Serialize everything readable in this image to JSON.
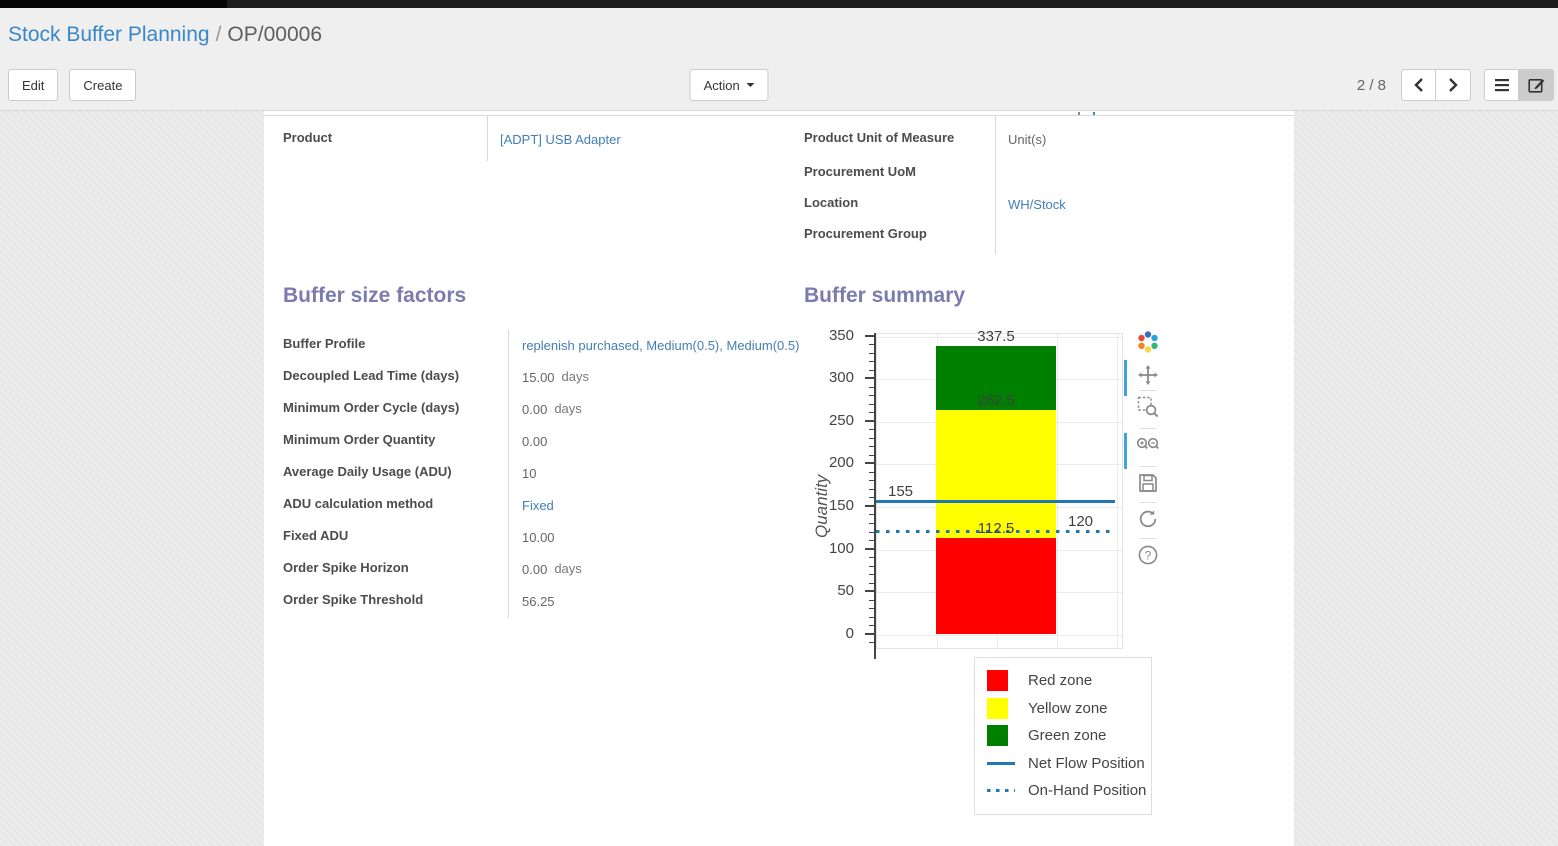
{
  "header": {
    "breadcrumb": {
      "parent": "Stock Buffer Planning",
      "separator": "/",
      "current": "OP/00006"
    },
    "buttons": {
      "edit": "Edit",
      "create": "Create",
      "action": "Action"
    },
    "pager": {
      "text": "2 / 8"
    }
  },
  "product_info": {
    "left": [
      {
        "label": "Product",
        "value": "[ADPT] USB Adapter",
        "link": true
      }
    ],
    "right": [
      {
        "label": "Product Unit of Measure",
        "value": "Unit(s)",
        "link": false
      },
      {
        "label": "Procurement UoM",
        "value": "",
        "link": false
      },
      {
        "label": "Location",
        "value": "WH/Stock",
        "link": true
      },
      {
        "label": "Procurement Group",
        "value": "",
        "link": false
      }
    ]
  },
  "buffer_factors": {
    "title": "Buffer size factors",
    "fields": [
      {
        "label": "Buffer Profile",
        "value": "replenish purchased, Medium(0.5), Medium(0.5)",
        "link": true
      },
      {
        "label": "Decoupled Lead Time (days)",
        "value": "15.00",
        "suffix": "days"
      },
      {
        "label": "Minimum Order Cycle (days)",
        "value": "0.00",
        "suffix": "days"
      },
      {
        "label": "Minimum Order Quantity",
        "value": "0.00"
      },
      {
        "label": "Average Daily Usage (ADU)",
        "value": "10"
      },
      {
        "label": "ADU calculation method",
        "value": "Fixed",
        "link": true
      },
      {
        "label": "Fixed ADU",
        "value": "10.00"
      },
      {
        "label": "Order Spike Horizon",
        "value": "0.00",
        "suffix": "days"
      },
      {
        "label": "Order Spike Threshold",
        "value": "56.25"
      }
    ]
  },
  "buffer_summary": {
    "title": "Buffer summary"
  },
  "chart_data": {
    "type": "bar",
    "title": "Buffer summary",
    "xlabel": "",
    "ylabel": "Quantity",
    "ylim": [
      0,
      350
    ],
    "y_ticks": [
      0,
      50,
      100,
      150,
      200,
      250,
      300,
      350
    ],
    "grid": true,
    "legend_position": "bottom-right",
    "zones": [
      {
        "name": "Red zone",
        "from": 0,
        "to": 112.5,
        "color": "#ff0000"
      },
      {
        "name": "Yellow zone",
        "from": 112.5,
        "to": 262.5,
        "color": "#ffff00"
      },
      {
        "name": "Green zone",
        "from": 262.5,
        "to": 337.5,
        "color": "#008000"
      }
    ],
    "boundary_labels": [
      "112.5",
      "262.5",
      "337.5"
    ],
    "lines": [
      {
        "name": "Net Flow Position",
        "value": 155,
        "label": "155",
        "style": "solid",
        "color": "#1f77b4",
        "label_side": "left"
      },
      {
        "name": "On-Hand Position",
        "value": 120,
        "label": "120",
        "style": "dotted",
        "color": "#1f77b4",
        "label_side": "right"
      }
    ],
    "legend": [
      {
        "label": "Red zone",
        "swatch": "square",
        "color": "#ff0000"
      },
      {
        "label": "Yellow zone",
        "swatch": "square",
        "color": "#ffff00"
      },
      {
        "label": "Green zone",
        "swatch": "square",
        "color": "#008000"
      },
      {
        "label": "Net Flow Position",
        "swatch": "line",
        "color": "#1f77b4"
      },
      {
        "label": "On-Hand Position",
        "swatch": "dots",
        "color": "#1f77b4"
      }
    ]
  },
  "modebar": {
    "icons": [
      {
        "name": "plotly-logo-icon",
        "active": false
      },
      {
        "name": "pan-icon",
        "active": true
      },
      {
        "name": "box-zoom-icon",
        "active": false
      },
      {
        "name": "zoom-in-out-icon",
        "active": true
      },
      {
        "name": "save-icon",
        "active": false
      },
      {
        "name": "reset-axes-icon",
        "active": false
      },
      {
        "name": "help-icon",
        "active": false
      }
    ]
  }
}
